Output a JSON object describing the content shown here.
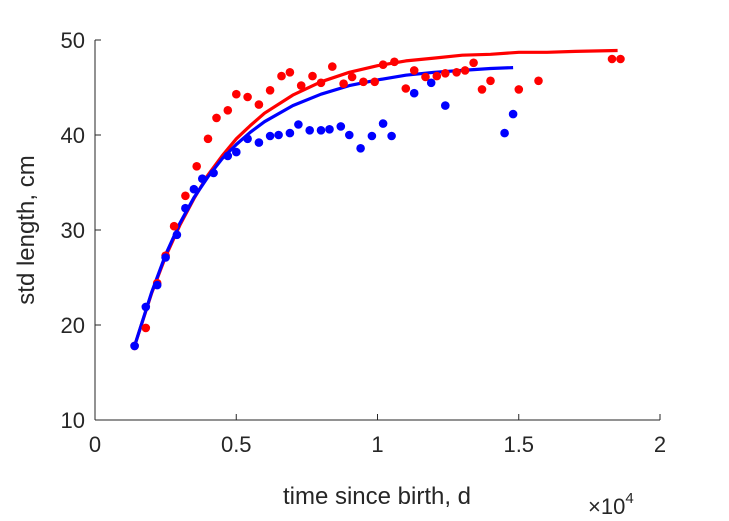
{
  "chart_data": {
    "type": "scatter",
    "xlabel": "time since birth, d",
    "ylabel": "std length, cm",
    "x_exponent_label": "×10^4",
    "x_exponent_base": "×10",
    "x_exponent_power": "4",
    "xlim": [
      0,
      20000
    ],
    "ylim": [
      10,
      50
    ],
    "xticks": [
      0,
      5000,
      10000,
      15000,
      20000
    ],
    "xtick_labels": [
      "0",
      "0.5",
      "1",
      "1.5",
      "2"
    ],
    "yticks": [
      10,
      20,
      30,
      40,
      50
    ],
    "ytick_labels": [
      "10",
      "20",
      "30",
      "40",
      "50"
    ],
    "grid": false,
    "colors": {
      "red": "#ff0000",
      "blue": "#0000ff",
      "axis": "#262626"
    },
    "series": [
      {
        "color": "#ff0000",
        "kind": "points",
        "x": [
          1400,
          1800,
          2200,
          2500,
          2800,
          3200,
          3600,
          4000,
          4300,
          4700,
          5000,
          5400,
          5800,
          6200,
          6600,
          6900,
          7300,
          7700,
          8000,
          8400,
          8800,
          9100,
          9500,
          9900,
          10200,
          10600,
          11000,
          11300,
          11700,
          12100,
          12400,
          12800,
          13100,
          13400,
          13700,
          14000,
          15000,
          15700,
          18300,
          18600
        ],
        "y": [
          17.8,
          19.7,
          24.4,
          27.3,
          30.4,
          33.6,
          36.7,
          39.6,
          41.8,
          42.6,
          44.3,
          44.0,
          43.2,
          44.7,
          46.2,
          46.6,
          45.2,
          46.2,
          45.5,
          47.2,
          45.4,
          46.1,
          45.6,
          45.6,
          47.4,
          47.7,
          44.9,
          46.8,
          46.1,
          46.2,
          46.5,
          46.6,
          46.8,
          47.6,
          44.8,
          45.7,
          44.8,
          45.7,
          48.0,
          48.0
        ]
      },
      {
        "color": "#0000ff",
        "kind": "points",
        "x": [
          1400,
          1800,
          2200,
          2500,
          2900,
          3200,
          3500,
          3800,
          4200,
          4700,
          5000,
          5400,
          5800,
          6200,
          6500,
          6900,
          7200,
          7600,
          8000,
          8300,
          8700,
          9000,
          9400,
          9800,
          10200,
          10500,
          11300,
          11900,
          12400,
          14500,
          14800
        ],
        "y": [
          17.8,
          21.9,
          24.2,
          27.1,
          29.5,
          32.3,
          34.3,
          35.4,
          36.0,
          37.8,
          38.2,
          39.6,
          39.2,
          39.9,
          40.0,
          40.2,
          41.1,
          40.5,
          40.5,
          40.6,
          40.9,
          40.0,
          38.6,
          39.9,
          41.2,
          39.9,
          44.4,
          45.5,
          43.1,
          40.2,
          42.2
        ]
      },
      {
        "color": "#ff0000",
        "kind": "fit-curve",
        "x": [
          1400,
          2000,
          2500,
          3000,
          3500,
          4000,
          4500,
          5000,
          5500,
          6000,
          7000,
          8000,
          9000,
          10000,
          11000,
          12000,
          13000,
          14000,
          15000,
          16000,
          17000,
          18500
        ],
        "y": [
          17.8,
          23.3,
          27.2,
          30.5,
          33.3,
          35.8,
          37.8,
          39.6,
          41.0,
          42.3,
          44.2,
          45.6,
          46.6,
          47.3,
          47.8,
          48.1,
          48.4,
          48.5,
          48.7,
          48.7,
          48.8,
          48.9
        ]
      },
      {
        "color": "#0000ff",
        "kind": "fit-curve",
        "x": [
          1400,
          2000,
          2500,
          3000,
          3500,
          4000,
          4500,
          5000,
          5500,
          6000,
          7000,
          8000,
          9000,
          10000,
          11000,
          12000,
          13000,
          14000,
          14800
        ],
        "y": [
          17.8,
          23.4,
          27.4,
          30.7,
          33.4,
          35.6,
          37.5,
          39.0,
          40.3,
          41.4,
          43.1,
          44.3,
          45.2,
          45.8,
          46.3,
          46.6,
          46.8,
          47.0,
          47.1
        ]
      }
    ]
  }
}
